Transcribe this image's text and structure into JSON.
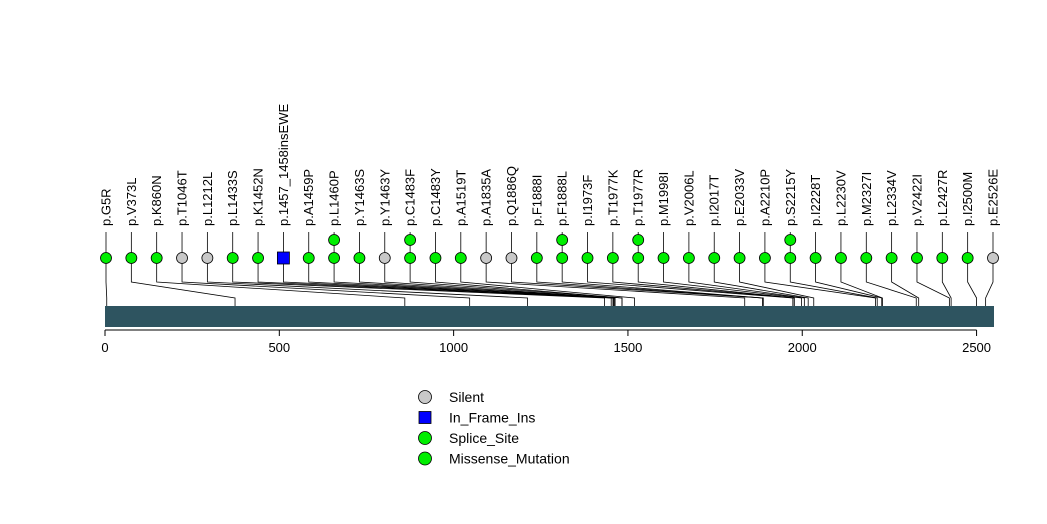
{
  "chart_data": {
    "type": "lollipop",
    "protein_length": 2550,
    "x_ticks": [
      0,
      500,
      1000,
      1500,
      2000,
      2500
    ],
    "xlim": [
      0,
      2550
    ],
    "domain_color": "#2e5460",
    "colors": {
      "Silent": "#c8c8c8",
      "In_Frame_Ins": "#0000ff",
      "Splice_Site": "#00ee00",
      "Missense_Mutation": "#00ee00"
    },
    "mutations": [
      {
        "label": "p.G5R",
        "position": 5,
        "class": "Missense_Mutation",
        "count": 1
      },
      {
        "label": "p.V373L",
        "position": 373,
        "class": "Missense_Mutation",
        "count": 1
      },
      {
        "label": "p.K860N",
        "position": 860,
        "class": "Missense_Mutation",
        "count": 1
      },
      {
        "label": "p.T1046T",
        "position": 1046,
        "class": "Silent",
        "count": 1
      },
      {
        "label": "p.L1212L",
        "position": 1212,
        "class": "Silent",
        "count": 1
      },
      {
        "label": "p.L1433S",
        "position": 1433,
        "class": "Missense_Mutation",
        "count": 1
      },
      {
        "label": "p.K1452N",
        "position": 1452,
        "class": "Missense_Mutation",
        "count": 1
      },
      {
        "label": "p.1457_1458insEWE",
        "position": 1457,
        "class": "In_Frame_Ins",
        "count": 1
      },
      {
        "label": "p.A1459P",
        "position": 1459,
        "class": "Missense_Mutation",
        "count": 1
      },
      {
        "label": "p.L1460P",
        "position": 1460,
        "class": "Missense_Mutation",
        "count": 2
      },
      {
        "label": "p.Y1463S",
        "position": 1463,
        "class": "Missense_Mutation",
        "count": 1
      },
      {
        "label": "p.Y1463Y",
        "position": 1463,
        "class": "Silent",
        "count": 1
      },
      {
        "label": "p.C1483F",
        "position": 1483,
        "class": "Missense_Mutation",
        "count": 2
      },
      {
        "label": "p.C1483Y",
        "position": 1483,
        "class": "Missense_Mutation",
        "count": 1
      },
      {
        "label": "p.A1519T",
        "position": 1519,
        "class": "Missense_Mutation",
        "count": 1
      },
      {
        "label": "p.A1835A",
        "position": 1835,
        "class": "Silent",
        "count": 1
      },
      {
        "label": "p.Q1886Q",
        "position": 1886,
        "class": "Silent",
        "count": 1
      },
      {
        "label": "p.F1888I",
        "position": 1888,
        "class": "Missense_Mutation",
        "count": 1
      },
      {
        "label": "p.F1888L",
        "position": 1888,
        "class": "Missense_Mutation",
        "count": 2
      },
      {
        "label": "p.I1973F",
        "position": 1973,
        "class": "Missense_Mutation",
        "count": 1
      },
      {
        "label": "p.T1977K",
        "position": 1977,
        "class": "Missense_Mutation",
        "count": 1
      },
      {
        "label": "p.T1977R",
        "position": 1977,
        "class": "Missense_Mutation",
        "count": 2
      },
      {
        "label": "p.M1998I",
        "position": 1998,
        "class": "Missense_Mutation",
        "count": 1
      },
      {
        "label": "p.V2006L",
        "position": 2006,
        "class": "Missense_Mutation",
        "count": 1
      },
      {
        "label": "p.I2017T",
        "position": 2017,
        "class": "Missense_Mutation",
        "count": 1
      },
      {
        "label": "p.E2033V",
        "position": 2033,
        "class": "Missense_Mutation",
        "count": 1
      },
      {
        "label": "p.A2210P",
        "position": 2210,
        "class": "Missense_Mutation",
        "count": 1
      },
      {
        "label": "p.S2215Y",
        "position": 2215,
        "class": "Missense_Mutation",
        "count": 2
      },
      {
        "label": "p.I2228T",
        "position": 2228,
        "class": "Missense_Mutation",
        "count": 1
      },
      {
        "label": "p.L2230V",
        "position": 2230,
        "class": "Missense_Mutation",
        "count": 1
      },
      {
        "label": "p.M2327I",
        "position": 2327,
        "class": "Missense_Mutation",
        "count": 1
      },
      {
        "label": "p.L2334V",
        "position": 2334,
        "class": "Missense_Mutation",
        "count": 1
      },
      {
        "label": "p.V2422I",
        "position": 2422,
        "class": "Missense_Mutation",
        "count": 1
      },
      {
        "label": "p.L2427R",
        "position": 2427,
        "class": "Missense_Mutation",
        "count": 1
      },
      {
        "label": "p.I2500M",
        "position": 2500,
        "class": "Missense_Mutation",
        "count": 1
      },
      {
        "label": "p.E2526E",
        "position": 2526,
        "class": "Silent",
        "count": 1
      }
    ],
    "legend": [
      {
        "label": "Silent",
        "shape": "circle",
        "color": "#c8c8c8"
      },
      {
        "label": "In_Frame_Ins",
        "shape": "square",
        "color": "#0000ff"
      },
      {
        "label": "Splice_Site",
        "shape": "circle",
        "color": "#00ee00"
      },
      {
        "label": "Missense_Mutation",
        "shape": "circle",
        "color": "#00ee00"
      }
    ]
  }
}
